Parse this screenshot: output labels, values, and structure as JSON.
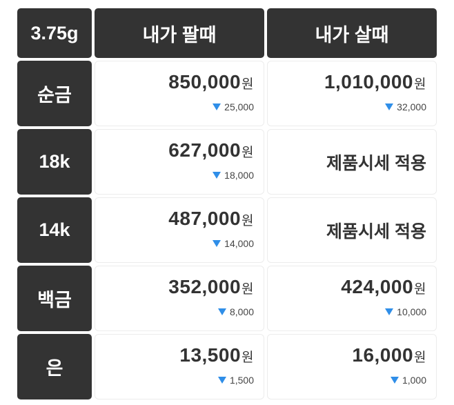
{
  "header": {
    "unit": "3.75g",
    "sell": "내가 팔때",
    "buy": "내가 살때"
  },
  "currency": "원",
  "colors": {
    "down": "#2f8ee8",
    "header_bg": "#333333"
  },
  "rows": [
    {
      "label": "순금",
      "sell": {
        "price": "850,000",
        "change": "25,000",
        "direction": "down"
      },
      "buy": {
        "price": "1,010,000",
        "change": "32,000",
        "direction": "down"
      }
    },
    {
      "label": "18k",
      "sell": {
        "price": "627,000",
        "change": "18,000",
        "direction": "down"
      },
      "buy": {
        "text": "제품시세 적용"
      }
    },
    {
      "label": "14k",
      "sell": {
        "price": "487,000",
        "change": "14,000",
        "direction": "down"
      },
      "buy": {
        "text": "제품시세 적용"
      }
    },
    {
      "label": "백금",
      "sell": {
        "price": "352,000",
        "change": "8,000",
        "direction": "down"
      },
      "buy": {
        "price": "424,000",
        "change": "10,000",
        "direction": "down"
      }
    },
    {
      "label": "은",
      "sell": {
        "price": "13,500",
        "change": "1,500",
        "direction": "down"
      },
      "buy": {
        "price": "16,000",
        "change": "1,000",
        "direction": "down"
      }
    }
  ]
}
